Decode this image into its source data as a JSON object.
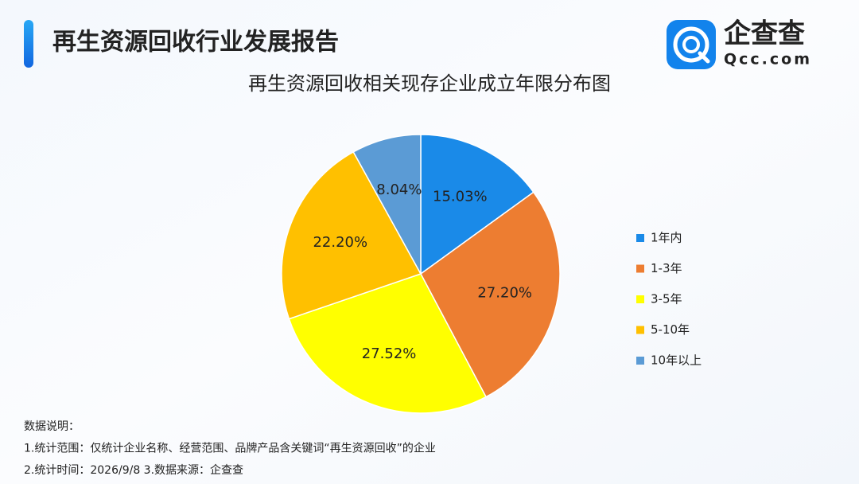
{
  "header": {
    "title": "再生资源回收行业发展报告"
  },
  "logo": {
    "name": "企查查",
    "domain": "Qcc.com"
  },
  "chart_data": {
    "type": "pie",
    "title": "再生资源回收相关现存企业成立年限分布图",
    "categories": [
      "1年内",
      "1-3年",
      "3-5年",
      "5-10年",
      "10年以上"
    ],
    "values": [
      15.03,
      27.2,
      27.52,
      22.2,
      8.04
    ],
    "value_labels": [
      "15.03%",
      "27.20%",
      "27.52%",
      "22.20%",
      "8.04%"
    ],
    "colors": [
      "#1a8ae8",
      "#ed7d31",
      "#ffff00",
      "#ffc000",
      "#5b9bd5"
    ],
    "legend": "right"
  },
  "notes": [
    "数据说明：",
    "1.统计范围：仅统计企业名称、经营范围、品牌产品含关键词“再生资源回收”的企业",
    "2.统计时间：2026/9/8 3.数据来源：企查查"
  ]
}
